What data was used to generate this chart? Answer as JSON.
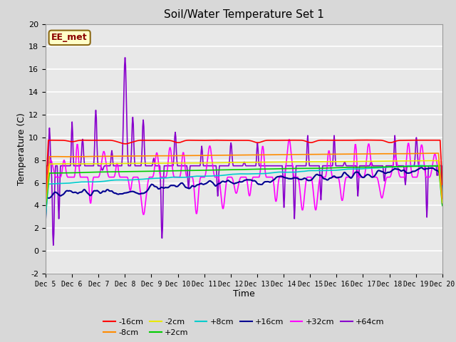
{
  "title": "Soil/Water Temperature Set 1",
  "xlabel": "Time",
  "ylabel": "Temperature (C)",
  "ylim": [
    -2,
    20
  ],
  "xlim": [
    0,
    15
  ],
  "x_tick_labels": [
    "Dec 5",
    "Dec 6",
    "Dec 7",
    "Dec 8",
    "Dec 9",
    "Dec 10",
    "Dec 11",
    "Dec 12",
    "Dec 13",
    "Dec 14",
    "Dec 15",
    "Dec 16",
    "Dec 17",
    "Dec 18",
    "Dec 19",
    "Dec 20"
  ],
  "figure_bg_color": "#d8d8d8",
  "plot_bg_color": "#e8e8e8",
  "grid_color": "#ffffff",
  "annotation_text": "EE_met",
  "annotation_bg": "#ffffc8",
  "annotation_border": "#8b6914",
  "annotation_text_color": "#8b0000",
  "series": [
    {
      "label": "-16cm",
      "color": "#ff0000",
      "lw": 1.2
    },
    {
      "label": "-8cm",
      "color": "#ff8c00",
      "lw": 1.2
    },
    {
      "label": "-2cm",
      "color": "#e8e800",
      "lw": 1.2
    },
    {
      "label": "+2cm",
      "color": "#00cc00",
      "lw": 1.2
    },
    {
      "label": "+8cm",
      "color": "#00cccc",
      "lw": 1.2
    },
    {
      "label": "+16cm",
      "color": "#000090",
      "lw": 1.5
    },
    {
      "label": "+32cm",
      "color": "#ff00ff",
      "lw": 1.2
    },
    {
      "label": "+64cm",
      "color": "#8800cc",
      "lw": 1.2
    }
  ]
}
